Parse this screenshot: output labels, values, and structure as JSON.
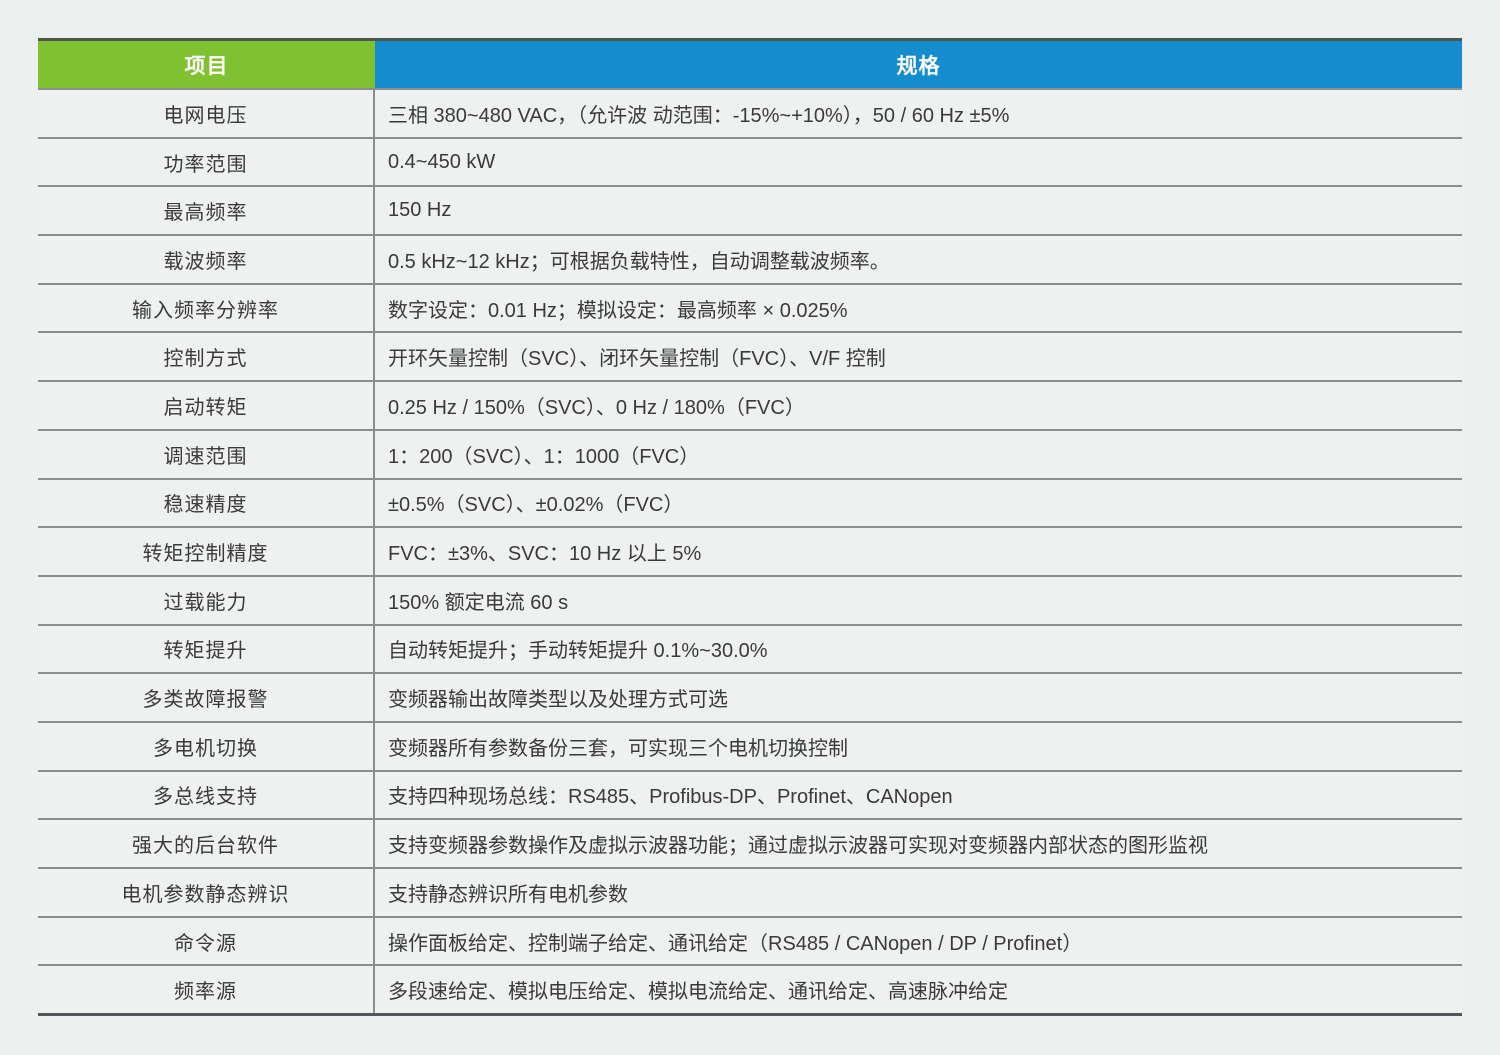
{
  "page": {
    "background": "#edf0ef"
  },
  "colors": {
    "header_item_bg": "#80c131",
    "header_spec_bg": "#148ccd",
    "top_border": "#52554d",
    "bottom_border": "#52555a",
    "separator": "#8c8e8d",
    "text": "#3a3a3a",
    "header_text": "#ffffff"
  },
  "table": {
    "header": {
      "item_label": "项目",
      "spec_label": "规格"
    },
    "rows": [
      {
        "label": "电网电压",
        "value": "三相 380~480 VAC，（允许波 动范围：-15%~+10%），50 / 60 Hz ±5%"
      },
      {
        "label": "功率范围",
        "value": "0.4~450 kW"
      },
      {
        "label": "最高频率",
        "value": "150 Hz"
      },
      {
        "label": "载波频率",
        "value": "0.5 kHz~12 kHz；可根据负载特性，自动调整载波频率。"
      },
      {
        "label": "输入频率分辨率",
        "value": "数字设定：0.01 Hz；模拟设定：最高频率 × 0.025%"
      },
      {
        "label": "控制方式",
        "value": "开环矢量控制（SVC）、闭环矢量控制（FVC）、V/F 控制"
      },
      {
        "label": "启动转矩",
        "value": "0.25 Hz / 150%（SVC）、0 Hz / 180%（FVC）"
      },
      {
        "label": "调速范围",
        "value": "1：200（SVC）、1：1000（FVC）"
      },
      {
        "label": "稳速精度",
        "value": "±0.5%（SVC）、±0.02%（FVC）"
      },
      {
        "label": "转矩控制精度",
        "value": "FVC：±3%、SVC：10 Hz 以上 5%"
      },
      {
        "label": "过载能力",
        "value": "150% 额定电流 60 s"
      },
      {
        "label": "转矩提升",
        "value": "自动转矩提升；手动转矩提升 0.1%~30.0%"
      },
      {
        "label": "多类故障报警",
        "value": "变频器输出故障类型以及处理方式可选"
      },
      {
        "label": "多电机切换",
        "value": "变频器所有参数备份三套，可实现三个电机切换控制"
      },
      {
        "label": "多总线支持",
        "value": "支持四种现场总线：RS485、Profibus-DP、Profinet、CANopen"
      },
      {
        "label": "强大的后台软件",
        "value": "支持变频器参数操作及虚拟示波器功能；通过虚拟示波器可实现对变频器内部状态的图形监视"
      },
      {
        "label": "电机参数静态辨识",
        "value": "支持静态辨识所有电机参数"
      },
      {
        "label": "命令源",
        "value": "操作面板给定、控制端子给定、通讯给定（RS485 / CANopen / DP / Profinet）"
      },
      {
        "label": "频率源",
        "value": "多段速给定、模拟电压给定、模拟电流给定、通讯给定、高速脉冲给定"
      }
    ]
  }
}
